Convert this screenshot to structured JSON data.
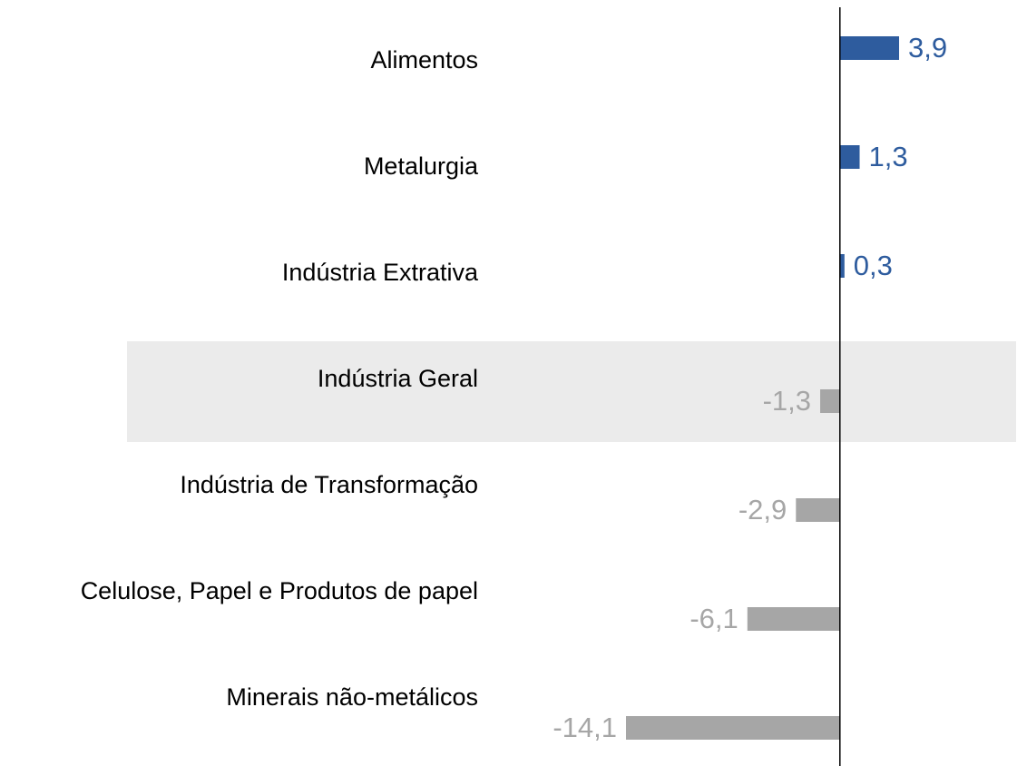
{
  "chart_data": {
    "type": "hbar",
    "categories": [
      "Alimentos",
      "Metalurgia",
      "Indústria Extrativa",
      "Indústria Geral",
      "Indústria de Transformação",
      "Celulose, Papel e Produtos de papel",
      "Minerais não-metálicos"
    ],
    "values": [
      3.9,
      1.3,
      0.3,
      -1.3,
      -2.9,
      -6.1,
      -14.1
    ],
    "value_labels": [
      "3,9",
      "1,3",
      "0,3",
      "-1,3",
      "-2,9",
      "-6,1",
      "-14,1"
    ],
    "positive_color": "#2e5c9e",
    "negative_color": "#a6a6a6",
    "highlight": "Indústria Geral",
    "highlight_color": "#ebebeb"
  }
}
